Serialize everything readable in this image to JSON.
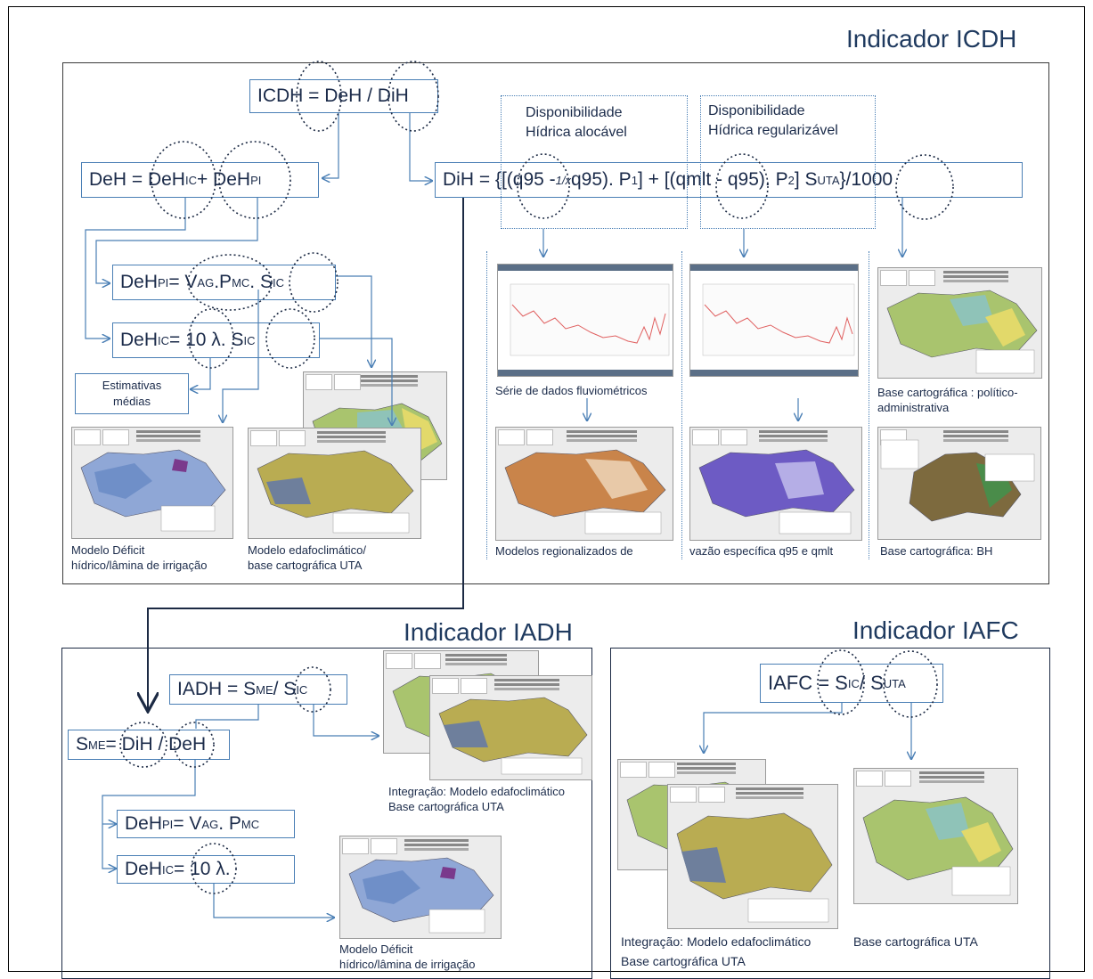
{
  "titles": {
    "icdh": "Indicador ICDH",
    "iadh": "Indicador IADH",
    "iafc": "Indicador IAFC"
  },
  "formulas": {
    "icdh": {
      "lhs": "ICDH = DeH / DiH"
    },
    "deh": {
      "a": "DeH = DeH",
      "a_sub": "IC",
      "b": " + DeH",
      "b_sub": "PI"
    },
    "dehpi": {
      "a": "DeH",
      "a_sub": "PI",
      "b": " = V",
      "b_sub": "AG",
      "c": ".P",
      "c_sub": "MC",
      "d": ". S",
      "d_sub": "IC"
    },
    "dehic": {
      "a": "DeH",
      "a_sub": "IC",
      "b": " = 10 λ.    S",
      "b_sub": "IC"
    },
    "dih": {
      "a": "DiH =  {[(q95 - ",
      "frac": "1/x",
      "b": " q95). P",
      "b_sub": "1",
      "c": "] + [(qmlt - q95). P",
      "c_sub": "2",
      "d": "]     S",
      "d_sub": "UTA",
      "e": "}/1000"
    },
    "iadh": {
      "a": "IADH = S",
      "a_sub": "ME",
      "b": " / S",
      "b_sub": "IC"
    },
    "sme": {
      "a": "S",
      "a_sub": "ME",
      "b": " = DiH / DeH"
    },
    "dehpi2": {
      "a": "DeH",
      "a_sub": "PI",
      "b": " = V",
      "b_sub": "AG",
      "c": ". P",
      "c_sub": "MC"
    },
    "dehic2": {
      "a": "DeH",
      "a_sub": "IC",
      "b": " = 10 λ."
    },
    "iafc": {
      "a": "IAFC = S",
      "a_sub": "IC",
      "b": " / S",
      "b_sub": "UTA"
    }
  },
  "labels": {
    "disp_aloc": [
      "Disponibilidade",
      "Hídrica alocável"
    ],
    "disp_reg": [
      "Disponibilidade",
      "Hídrica regularizável"
    ],
    "estimativas": [
      "Estimativas",
      "médias"
    ],
    "modelo_deficit": [
      "Modelo Déficit",
      "hídrico/lâmina de irrigação"
    ],
    "modelo_edafo": [
      "Modelo edafoclimático/",
      "base cartográfica UTA"
    ],
    "serie": "Série  de dados fluviométricos",
    "modelos_reg": "Modelos  regionalizados  de",
    "vazao": "vazão específica q95 e qmlt",
    "base_pol": [
      "Base cartográfica : político-",
      "administrativa"
    ],
    "base_bh": "Base cartográfica: BH",
    "integ_iadh": [
      "Integração: Modelo edafoclimático",
      "Base cartográfica UTA"
    ],
    "deficit_iadh": [
      "Modelo Déficit",
      "hídrico/lâmina de irrigação"
    ],
    "integ_iafc": [
      "Integração: Modelo edafoclimático",
      "Base cartográfica UTA"
    ],
    "base_uta_iafc": "Base cartográfica UTA"
  },
  "colors": {
    "accent": "#4a7fb5",
    "title": "#1f3a5f",
    "dark_arrow": "#1c2a44",
    "map_blue": "#6f8fc8",
    "map_olive": "#b9ac52",
    "map_orange": "#c9844a",
    "map_purple": "#6d5bc4",
    "map_green": "#9bbf6a",
    "map_brown": "#7d6a3e",
    "chart_line": "#e06060"
  }
}
